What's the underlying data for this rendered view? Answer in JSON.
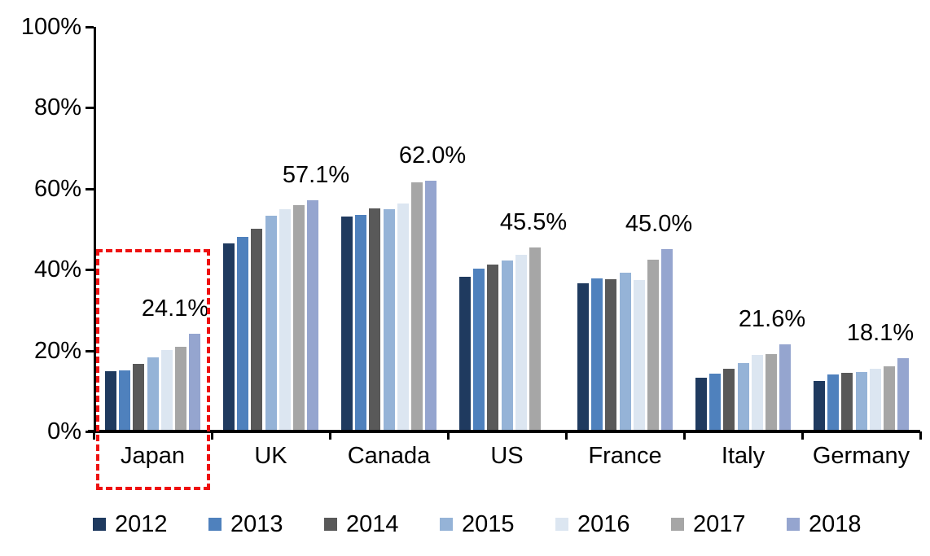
{
  "chart_data": {
    "type": "bar",
    "title": "",
    "categories": [
      "Japan",
      "UK",
      "Canada",
      "US",
      "France",
      "Italy",
      "Germany"
    ],
    "series": [
      {
        "name": "2012",
        "color": "#1F3A5F",
        "values": [
          14.9,
          46.4,
          53.1,
          38.3,
          36.6,
          13.3,
          12.5
        ]
      },
      {
        "name": "2013",
        "color": "#4F81BD",
        "values": [
          15.1,
          48.0,
          53.6,
          40.2,
          37.8,
          14.2,
          14.1
        ]
      },
      {
        "name": "2014",
        "color": "#595959",
        "values": [
          16.6,
          50.1,
          55.1,
          41.2,
          37.7,
          15.4,
          14.4
        ]
      },
      {
        "name": "2015",
        "color": "#95B3D7",
        "values": [
          18.3,
          53.4,
          54.9,
          42.3,
          39.2,
          16.9,
          14.7
        ]
      },
      {
        "name": "2016",
        "color": "#DCE6F1",
        "values": [
          20.2,
          54.9,
          56.4,
          43.7,
          37.4,
          19.0,
          15.5
        ]
      },
      {
        "name": "2017",
        "color": "#A6A6A6",
        "values": [
          21.0,
          55.9,
          61.6,
          45.5,
          42.4,
          19.2,
          16.1
        ]
      },
      {
        "name": "2018",
        "color": "#95A5CF",
        "values": [
          24.1,
          57.1,
          62.0,
          null,
          45.0,
          21.6,
          18.1
        ]
      }
    ],
    "data_labels": [
      "24.1%",
      "57.1%",
      "62.0%",
      "45.5%",
      "45.0%",
      "21.6%",
      "18.1%"
    ],
    "y_ticks": [
      "0%",
      "20%",
      "40%",
      "60%",
      "80%",
      "100%"
    ],
    "ylim": [
      0,
      100
    ],
    "grid": false,
    "legend_position": "bottom",
    "legend_labels": [
      "2012",
      "2013",
      "2014",
      "2015",
      "2016",
      "2017",
      "2018"
    ],
    "highlight": {
      "category": "Japan",
      "style": "red-dashed-box",
      "color": "#EE1111"
    },
    "axis_color": "#000000",
    "text_color": "#000000"
  }
}
